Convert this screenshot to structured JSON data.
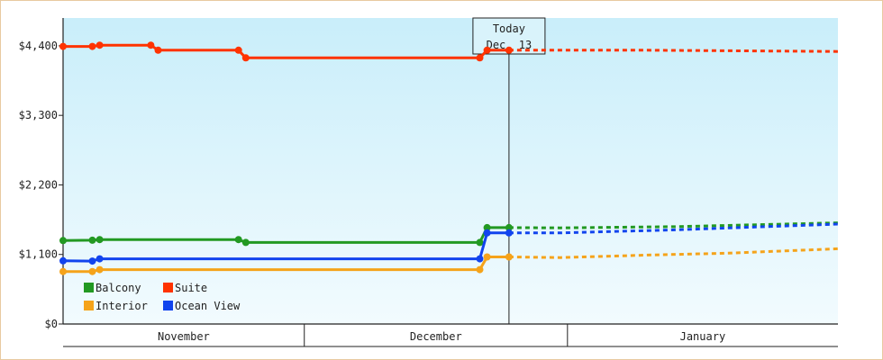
{
  "chart_data": {
    "type": "line",
    "title": "",
    "xlabel": "",
    "ylabel": "",
    "ylim": [
      0,
      4840
    ],
    "yticks": [
      {
        "value": 0,
        "label": "$0"
      },
      {
        "value": 1100,
        "label": "$1,100"
      },
      {
        "value": 2200,
        "label": "$2,200"
      },
      {
        "value": 3300,
        "label": "$3,300"
      },
      {
        "value": 4400,
        "label": "$4,400"
      }
    ],
    "xlim": [
      "2023-10-13",
      "2024-01-27"
    ],
    "months": [
      {
        "label": "November",
        "start": "2023-10-13",
        "end": "2023-11-15"
      },
      {
        "label": "December",
        "start": "2023-11-15",
        "end": "2023-12-21"
      },
      {
        "label": "January",
        "start": "2023-12-21",
        "end": "2024-01-27"
      }
    ],
    "today": {
      "date": "2023-12-13",
      "line1": "Today",
      "line2": "Dec. 13"
    },
    "grid": false,
    "legend_position": "bottom-left",
    "series": [
      {
        "name": "Balcony",
        "color": "#229922",
        "history": [
          {
            "x": "2023-10-13",
            "y": 1320
          },
          {
            "x": "2023-10-17",
            "y": 1325
          },
          {
            "x": "2023-10-18",
            "y": 1335
          },
          {
            "x": "2023-11-06",
            "y": 1335
          },
          {
            "x": "2023-11-07",
            "y": 1290
          },
          {
            "x": "2023-12-09",
            "y": 1290
          },
          {
            "x": "2023-12-10",
            "y": 1525
          },
          {
            "x": "2023-12-13",
            "y": 1525
          }
        ],
        "forecast": [
          {
            "x": "2023-12-13",
            "y": 1525
          },
          {
            "x": "2023-12-20",
            "y": 1520
          },
          {
            "x": "2024-01-05",
            "y": 1540
          },
          {
            "x": "2024-01-27",
            "y": 1600
          }
        ]
      },
      {
        "name": "Suite",
        "color": "#ff3300",
        "history": [
          {
            "x": "2023-10-13",
            "y": 4390
          },
          {
            "x": "2023-10-17",
            "y": 4390
          },
          {
            "x": "2023-10-18",
            "y": 4410
          },
          {
            "x": "2023-10-25",
            "y": 4410
          },
          {
            "x": "2023-10-26",
            "y": 4330
          },
          {
            "x": "2023-11-06",
            "y": 4330
          },
          {
            "x": "2023-11-07",
            "y": 4210
          },
          {
            "x": "2023-12-09",
            "y": 4210
          },
          {
            "x": "2023-12-10",
            "y": 4330
          },
          {
            "x": "2023-12-13",
            "y": 4330
          }
        ],
        "forecast": [
          {
            "x": "2023-12-13",
            "y": 4330
          },
          {
            "x": "2024-01-01",
            "y": 4330
          },
          {
            "x": "2024-01-27",
            "y": 4310
          }
        ]
      },
      {
        "name": "Interior",
        "color": "#f5a31a",
        "history": [
          {
            "x": "2023-10-13",
            "y": 830
          },
          {
            "x": "2023-10-17",
            "y": 830
          },
          {
            "x": "2023-10-18",
            "y": 860
          },
          {
            "x": "2023-12-09",
            "y": 860
          },
          {
            "x": "2023-12-10",
            "y": 1060
          },
          {
            "x": "2023-12-13",
            "y": 1060
          }
        ],
        "forecast": [
          {
            "x": "2023-12-13",
            "y": 1060
          },
          {
            "x": "2023-12-20",
            "y": 1050
          },
          {
            "x": "2024-01-01",
            "y": 1090
          },
          {
            "x": "2024-01-12",
            "y": 1120
          },
          {
            "x": "2024-01-27",
            "y": 1190
          }
        ]
      },
      {
        "name": "Ocean View",
        "color": "#1144ee",
        "history": [
          {
            "x": "2023-10-13",
            "y": 1000
          },
          {
            "x": "2023-10-17",
            "y": 995
          },
          {
            "x": "2023-10-18",
            "y": 1030
          },
          {
            "x": "2023-12-09",
            "y": 1030
          },
          {
            "x": "2023-12-10",
            "y": 1440
          },
          {
            "x": "2023-12-13",
            "y": 1440
          }
        ],
        "forecast": [
          {
            "x": "2023-12-13",
            "y": 1440
          },
          {
            "x": "2023-12-20",
            "y": 1440
          },
          {
            "x": "2024-01-05",
            "y": 1490
          },
          {
            "x": "2024-01-27",
            "y": 1580
          }
        ]
      }
    ]
  }
}
